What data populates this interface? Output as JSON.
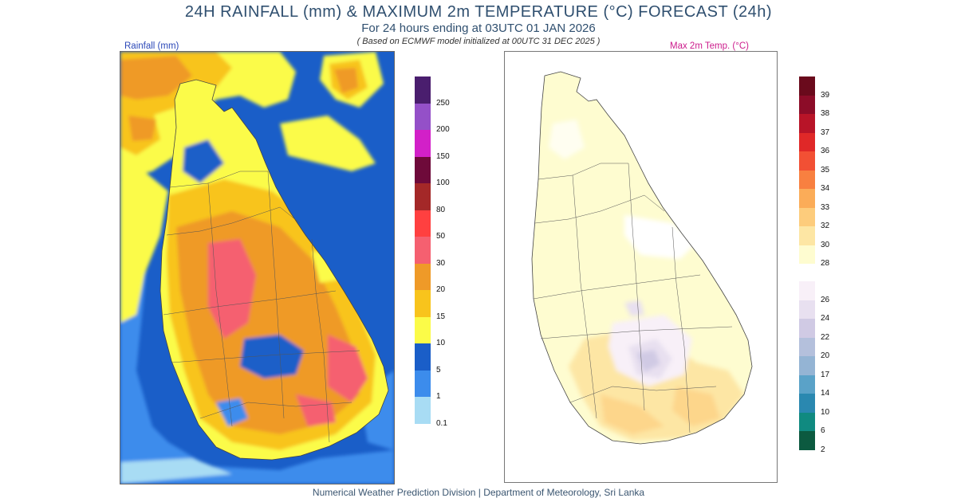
{
  "header": {
    "title": "24H RAINFALL (mm) & MAXIMUM 2m TEMPERATURE (°C) FORECAST (24h)",
    "subtitle": "For 24 hours ending at 03UTC 01 JAN 2026",
    "model_note": "( Based on ECMWF model initialized at 00UTC 31 DEC 2025 )"
  },
  "rain_map": {
    "label": "Rainfall (mm)",
    "legend": [
      {
        "label": "250",
        "color": "#4a1e6e"
      },
      {
        "label": "200",
        "color": "#9450c8"
      },
      {
        "label": "150",
        "color": "#d220c8"
      },
      {
        "label": "100",
        "color": "#6e0a3a"
      },
      {
        "label": "80",
        "color": "#a42828"
      },
      {
        "label": "50",
        "color": "#ff4040"
      },
      {
        "label": "30",
        "color": "#f56070"
      },
      {
        "label": "20",
        "color": "#ef9a28"
      },
      {
        "label": "15",
        "color": "#f8c41c"
      },
      {
        "label": "10",
        "color": "#fbfb48"
      },
      {
        "label": "5",
        "color": "#1a5ec8"
      },
      {
        "label": "1",
        "color": "#3c8cec"
      },
      {
        "label": "0.1",
        "color": "#a8dcf4"
      }
    ]
  },
  "temp_map": {
    "label": "Max 2m Temp. (°C)",
    "legend_warm": [
      {
        "label": "39",
        "color": "#6a0a1c"
      },
      {
        "label": "38",
        "color": "#8c0c28"
      },
      {
        "label": "37",
        "color": "#b81428"
      },
      {
        "label": "36",
        "color": "#e02828"
      },
      {
        "label": "35",
        "color": "#f25034"
      },
      {
        "label": "34",
        "color": "#f88040"
      },
      {
        "label": "33",
        "color": "#fbac58"
      },
      {
        "label": "32",
        "color": "#fdcc7c"
      },
      {
        "label": "30",
        "color": "#fde6a4"
      },
      {
        "label": "28",
        "color": "#fefcd0"
      }
    ],
    "legend_cool": [
      {
        "label": "26",
        "color": "#f8f0f8"
      },
      {
        "label": "24",
        "color": "#e8e0f0"
      },
      {
        "label": "22",
        "color": "#d0cae4"
      },
      {
        "label": "20",
        "color": "#b4c0dc"
      },
      {
        "label": "17",
        "color": "#94b4d4"
      },
      {
        "label": "14",
        "color": "#5aa2c8"
      },
      {
        "label": "10",
        "color": "#2a88b0"
      },
      {
        "label": "6",
        "color": "#108a80"
      },
      {
        "label": "2",
        "color": "#0c5a40"
      }
    ]
  },
  "footer": "Numerical Weather Prediction Division | Department of Meteorology, Sri Lanka"
}
